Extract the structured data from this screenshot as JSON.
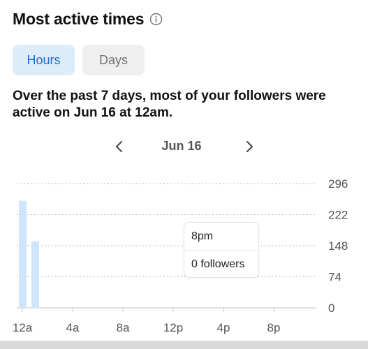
{
  "header": {
    "title": "Most active times",
    "info_icon": "info-circle-icon"
  },
  "tabs": [
    {
      "label": "Hours",
      "active": true
    },
    {
      "label": "Days",
      "active": false
    }
  ],
  "summary": "Over the past 7 days, most of your followers were active on Jun 16 at 12am.",
  "date_nav": {
    "label": "Jun 16",
    "prev_icon": "chevron-left-icon",
    "next_icon": "chevron-right-icon"
  },
  "tooltip": {
    "time": "8pm",
    "value": "0 followers"
  },
  "colors": {
    "accent": "#1f6fcc",
    "active_tab_bg": "#dcecfb",
    "bar": "#cfe5fb",
    "inactive_tab_bg": "#efefef"
  },
  "chart_data": {
    "type": "bar",
    "x_tick_labels": [
      "12a",
      "4a",
      "8a",
      "12p",
      "4p",
      "8p"
    ],
    "hours": [
      0,
      1,
      2,
      3,
      4,
      5,
      6,
      7,
      8,
      9,
      10,
      11,
      12,
      13,
      14,
      15,
      16,
      17,
      18,
      19,
      20,
      21,
      22,
      23
    ],
    "values": [
      255,
      158,
      0,
      0,
      0,
      0,
      0,
      0,
      0,
      0,
      0,
      0,
      0,
      0,
      0,
      0,
      0,
      0,
      0,
      0,
      0,
      0,
      0,
      0
    ],
    "y_tick_labels": [
      "296",
      "222",
      "148",
      "74",
      "0"
    ],
    "ylim": [
      0,
      296
    ],
    "grid": "dotted horizontal",
    "y_axis_side": "right"
  }
}
